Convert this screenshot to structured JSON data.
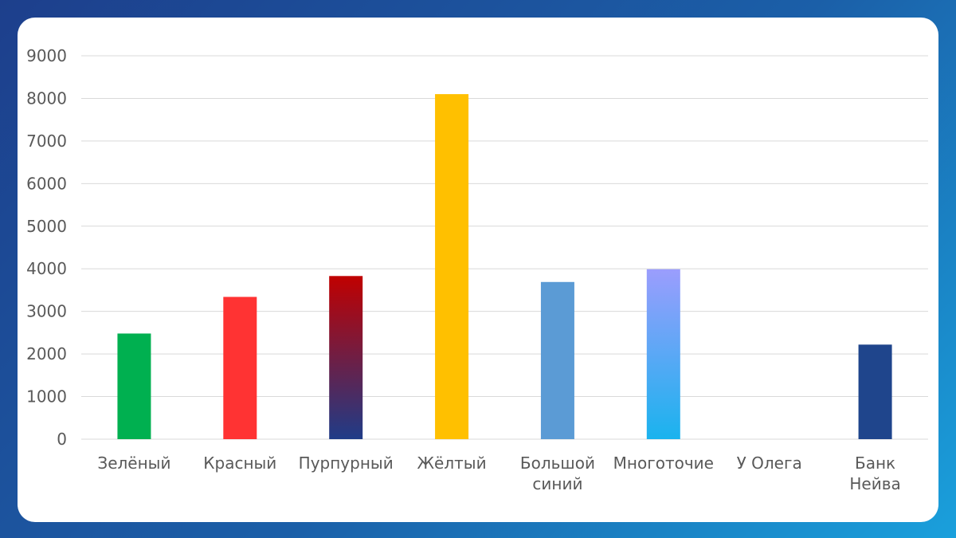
{
  "chart_data": {
    "type": "bar",
    "title": "",
    "xlabel": "",
    "ylabel": "",
    "ylim": [
      0,
      9000
    ],
    "yticks": [
      0,
      1000,
      2000,
      3000,
      4000,
      5000,
      6000,
      7000,
      8000,
      9000
    ],
    "grid": true,
    "legend": "none",
    "categories": [
      [
        "Зелёный"
      ],
      [
        "Красный"
      ],
      [
        "Пурпурный"
      ],
      [
        "Жёлтый"
      ],
      [
        "Большой",
        "синий"
      ],
      [
        "Многоточие"
      ],
      [
        "У Олега"
      ],
      [
        "Банк",
        "Нейва"
      ]
    ],
    "values": [
      2480,
      3340,
      3830,
      8100,
      3690,
      3990,
      0,
      2220
    ],
    "colors": [
      "#00b050",
      "#ff3333",
      [
        "#c00000",
        "#1f3c88"
      ],
      "#ffc000",
      "#5b9bd5",
      [
        "#9b9dfd",
        "#1ab3ee"
      ],
      "#5b9bd5",
      "#1f458c"
    ]
  }
}
